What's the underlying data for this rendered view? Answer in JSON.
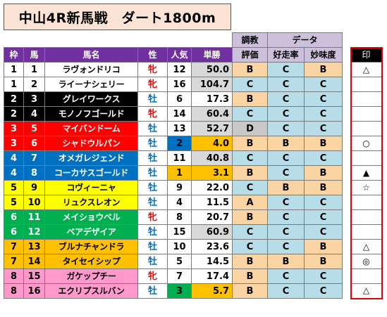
{
  "title": "中山4R新馬戦　ダート1800m",
  "headers": {
    "chokyo_top": "調教",
    "chokyo_bottom": "評価",
    "data_top": "データ",
    "waku": "枠",
    "uma": "馬",
    "bamei": "馬名",
    "sei": "性",
    "ninki": "人気",
    "tansho": "単勝",
    "kosoritsu": "好走率",
    "mimido": "妙味度",
    "shirushi": "印"
  },
  "colors": {
    "waku": {
      "1": "#ffffff",
      "2": "#000000",
      "3": "#ff0000",
      "4": "#0070c0",
      "5": "#ffff00",
      "6": "#00b050",
      "7": "#ffc000",
      "8": "#ff99cc"
    },
    "rank_bg": {
      "A": "#fbd4a4",
      "B": "#fbd4a4",
      "C": "#b7dee8",
      "D": "#c8c8c8"
    },
    "pop_top3": "#ffc000",
    "pop_2": "#0070c0",
    "pop_3": "#00b050",
    "odds_gray": "#d9d9d9",
    "header_purple": "#7030a0",
    "header_lavender": "#ccc0da",
    "title_bg": "#fbe4d5",
    "mark_border": "#e00000"
  },
  "rows": [
    {
      "waku": "1",
      "uma": "1",
      "name": "ラヴォンドリコ",
      "sex": "牝",
      "pop": "12",
      "odds": "50.0",
      "chokyo": "B",
      "koso": "C",
      "mimi": "B",
      "mark": "△"
    },
    {
      "waku": "1",
      "uma": "2",
      "name": "ライーナシェリー",
      "sex": "牝",
      "pop": "16",
      "odds": "104.7",
      "chokyo": "C",
      "koso": "C",
      "mimi": "C",
      "mark": ""
    },
    {
      "waku": "2",
      "uma": "3",
      "name": "グレイワークス",
      "sex": "牡",
      "pop": "6",
      "odds": "17.3",
      "chokyo": "B",
      "koso": "C",
      "mimi": "C",
      "mark": ""
    },
    {
      "waku": "2",
      "uma": "4",
      "name": "モノノフゴールド",
      "sex": "牝",
      "pop": "14",
      "odds": "60.4",
      "chokyo": "C",
      "koso": "C",
      "mimi": "C",
      "mark": ""
    },
    {
      "waku": "3",
      "uma": "5",
      "name": "マイバンドーム",
      "sex": "牡",
      "pop": "13",
      "odds": "52.7",
      "chokyo": "D",
      "koso": "C",
      "mimi": "C",
      "mark": ""
    },
    {
      "waku": "3",
      "uma": "6",
      "name": "シャドウルパン",
      "sex": "牡",
      "pop": "2",
      "odds": "4.0",
      "chokyo": "B",
      "koso": "B",
      "mimi": "B",
      "mark": "○"
    },
    {
      "waku": "4",
      "uma": "7",
      "name": "オメガレジェンド",
      "sex": "牡",
      "pop": "11",
      "odds": "40.8",
      "chokyo": "C",
      "koso": "C",
      "mimi": "C",
      "mark": ""
    },
    {
      "waku": "4",
      "uma": "8",
      "name": "コーカサスゴールド",
      "sex": "牡",
      "pop": "1",
      "odds": "3.1",
      "chokyo": "B",
      "koso": "C",
      "mimi": "B",
      "mark": "▲"
    },
    {
      "waku": "5",
      "uma": "9",
      "name": "コヴィーニャ",
      "sex": "牡",
      "pop": "9",
      "odds": "22.0",
      "chokyo": "C",
      "koso": "B",
      "mimi": "B",
      "mark": "☆"
    },
    {
      "waku": "5",
      "uma": "10",
      "name": "リュクスレオン",
      "sex": "牡",
      "pop": "4",
      "odds": "11.5",
      "chokyo": "A",
      "koso": "C",
      "mimi": "C",
      "mark": ""
    },
    {
      "waku": "6",
      "uma": "11",
      "name": "メイショウベル",
      "sex": "牝",
      "pop": "8",
      "odds": "20.7",
      "chokyo": "B",
      "koso": "C",
      "mimi": "C",
      "mark": ""
    },
    {
      "waku": "6",
      "uma": "12",
      "name": "ベアデザイア",
      "sex": "牡",
      "pop": "15",
      "odds": "60.9",
      "chokyo": "C",
      "koso": "C",
      "mimi": "C",
      "mark": ""
    },
    {
      "waku": "7",
      "uma": "13",
      "name": "ブルナチャンドラ",
      "sex": "牡",
      "pop": "10",
      "odds": "23.6",
      "chokyo": "C",
      "koso": "C",
      "mimi": "B",
      "mark": "△"
    },
    {
      "waku": "7",
      "uma": "14",
      "name": "タイセイシップ",
      "sex": "牡",
      "pop": "5",
      "odds": "14.5",
      "chokyo": "B",
      "koso": "B",
      "mimi": "B",
      "mark": "◎"
    },
    {
      "waku": "8",
      "uma": "15",
      "name": "ガケップチー",
      "sex": "牝",
      "pop": "7",
      "odds": "17.4",
      "chokyo": "B",
      "koso": "C",
      "mimi": "C",
      "mark": ""
    },
    {
      "waku": "8",
      "uma": "16",
      "name": "エクリプスルバン",
      "sex": "牡",
      "pop": "3",
      "odds": "5.7",
      "chokyo": "B",
      "koso": "C",
      "mimi": "C",
      "mark": "△"
    }
  ]
}
